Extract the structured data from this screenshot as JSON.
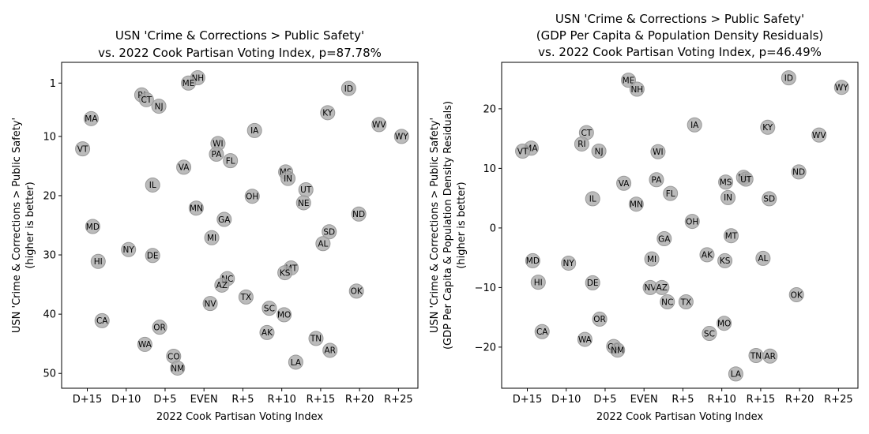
{
  "chart_data": [
    {
      "type": "scatter",
      "title": [
        "USN 'Crime & Corrections > Public Safety'",
        "vs. 2022 Cook Partisan Voting Index, p=87.78%"
      ],
      "xlabel": "2022 Cook Partisan Voting Index",
      "ylabel": [
        "USN 'Crime & Corrections > Public Safety'",
        "(higher is better)"
      ],
      "xlim": [
        -18.3,
        27.5
      ],
      "ylim": [
        52.5,
        -2.5
      ],
      "y_inverted": true,
      "xticks": [
        {
          "v": -15,
          "label": "D+15"
        },
        {
          "v": -10,
          "label": "D+10"
        },
        {
          "v": -5,
          "label": "D+5"
        },
        {
          "v": 0,
          "label": "EVEN"
        },
        {
          "v": 5,
          "label": "R+5"
        },
        {
          "v": 10,
          "label": "R+10"
        },
        {
          "v": 15,
          "label": "R+15"
        },
        {
          "v": 20,
          "label": "R+20"
        },
        {
          "v": 25,
          "label": "R+25"
        }
      ],
      "yticks": [
        {
          "v": 1,
          "label": "1"
        },
        {
          "v": 10,
          "label": "10"
        },
        {
          "v": 20,
          "label": "20"
        },
        {
          "v": 30,
          "label": "30"
        },
        {
          "v": 40,
          "label": "40"
        },
        {
          "v": 50,
          "label": "50"
        }
      ],
      "points": [
        {
          "label": "NH",
          "x": -0.8,
          "y": 0.1
        },
        {
          "label": "ME",
          "x": -2.0,
          "y": 1.0
        },
        {
          "label": "ID",
          "x": 18.6,
          "y": 1.9
        },
        {
          "label": "RI",
          "x": -8.0,
          "y": 3.0
        },
        {
          "label": "CT",
          "x": -7.4,
          "y": 3.8
        },
        {
          "label": "NJ",
          "x": -5.8,
          "y": 4.9
        },
        {
          "label": "KY",
          "x": 15.9,
          "y": 6.0
        },
        {
          "label": "MA",
          "x": -14.5,
          "y": 7.0
        },
        {
          "label": "WV",
          "x": 22.5,
          "y": 8.0
        },
        {
          "label": "IA",
          "x": 6.5,
          "y": 9.0
        },
        {
          "label": "WY",
          "x": 25.4,
          "y": 10.0
        },
        {
          "label": "WI",
          "x": 1.8,
          "y": 11.2
        },
        {
          "label": "VT",
          "x": -15.6,
          "y": 12.1
        },
        {
          "label": "PA",
          "x": 1.6,
          "y": 13.0
        },
        {
          "label": "FL",
          "x": 3.4,
          "y": 14.1
        },
        {
          "label": "VA",
          "x": -2.6,
          "y": 15.2
        },
        {
          "label": "MS",
          "x": 10.5,
          "y": 16.0
        },
        {
          "label": "IN",
          "x": 10.8,
          "y": 17.1
        },
        {
          "label": "IL",
          "x": -6.6,
          "y": 18.2
        },
        {
          "label": "UT",
          "x": 13.1,
          "y": 19.0
        },
        {
          "label": "OH",
          "x": 6.2,
          "y": 20.1
        },
        {
          "label": "NE",
          "x": 12.8,
          "y": 21.2
        },
        {
          "label": "MN",
          "x": -1.0,
          "y": 22.1
        },
        {
          "label": "ND",
          "x": 19.9,
          "y": 23.1
        },
        {
          "label": "GA",
          "x": 2.6,
          "y": 24.0
        },
        {
          "label": "MD",
          "x": -14.3,
          "y": 25.2
        },
        {
          "label": "SD",
          "x": 16.1,
          "y": 26.1
        },
        {
          "label": "MI",
          "x": 1.0,
          "y": 27.1
        },
        {
          "label": "AL",
          "x": 15.3,
          "y": 28.1
        },
        {
          "label": "NY",
          "x": -9.7,
          "y": 29.1
        },
        {
          "label": "DE",
          "x": -6.6,
          "y": 30.1
        },
        {
          "label": "HI",
          "x": -13.6,
          "y": 31.1
        },
        {
          "label": "MT",
          "x": 11.2,
          "y": 32.2
        },
        {
          "label": "KS",
          "x": 10.4,
          "y": 33.0
        },
        {
          "label": "NC",
          "x": 3.0,
          "y": 34.0
        },
        {
          "label": "AZ",
          "x": 2.3,
          "y": 35.1
        },
        {
          "label": "OK",
          "x": 19.6,
          "y": 36.1
        },
        {
          "label": "TX",
          "x": 5.4,
          "y": 37.1
        },
        {
          "label": "NV",
          "x": 0.8,
          "y": 38.2
        },
        {
          "label": "SC",
          "x": 8.4,
          "y": 39.0
        },
        {
          "label": "MO",
          "x": 10.3,
          "y": 40.1
        },
        {
          "label": "CA",
          "x": -13.1,
          "y": 41.1
        },
        {
          "label": "OR",
          "x": -5.7,
          "y": 42.2
        },
        {
          "label": "AK",
          "x": 8.1,
          "y": 43.1
        },
        {
          "label": "TN",
          "x": 14.4,
          "y": 44.1
        },
        {
          "label": "WA",
          "x": -7.6,
          "y": 45.1
        },
        {
          "label": "AR",
          "x": 16.2,
          "y": 46.1
        },
        {
          "label": "CO",
          "x": -3.9,
          "y": 47.1
        },
        {
          "label": "LA",
          "x": 11.8,
          "y": 48.1
        },
        {
          "label": "NM",
          "x": -3.4,
          "y": 49.1
        }
      ]
    },
    {
      "type": "scatter",
      "title": [
        "USN 'Crime & Corrections > Public Safety'",
        "(GDP Per Capita & Population Density Residuals)",
        "vs. 2022 Cook Partisan Voting Index, p=46.49%"
      ],
      "xlabel": "2022 Cook Partisan Voting Index",
      "ylabel": [
        "USN 'Crime & Corrections > Public Safety'",
        "(GDP Per Capita & Population Density Residuals)",
        "(higher is better)"
      ],
      "xlim": [
        -18.3,
        27.5
      ],
      "ylim": [
        -26.9,
        27.8
      ],
      "xticks": [
        {
          "v": -15,
          "label": "D+15"
        },
        {
          "v": -10,
          "label": "D+10"
        },
        {
          "v": -5,
          "label": "D+5"
        },
        {
          "v": 0,
          "label": "EVEN"
        },
        {
          "v": 5,
          "label": "R+5"
        },
        {
          "v": 10,
          "label": "R+10"
        },
        {
          "v": 15,
          "label": "R+15"
        },
        {
          "v": 20,
          "label": "R+20"
        },
        {
          "v": 25,
          "label": "R+25"
        }
      ],
      "yticks": [
        {
          "v": 20,
          "label": "20"
        },
        {
          "v": 10,
          "label": "10"
        },
        {
          "v": 0,
          "label": "0"
        },
        {
          "v": -10,
          "label": "−10"
        },
        {
          "v": -20,
          "label": "−20"
        }
      ],
      "points": [
        {
          "label": "ID",
          "x": 18.6,
          "y": 25.2
        },
        {
          "label": "ME",
          "x": -2.0,
          "y": 24.8
        },
        {
          "label": "WY",
          "x": 25.4,
          "y": 23.6
        },
        {
          "label": "NH",
          "x": -0.9,
          "y": 23.3
        },
        {
          "label": "IA",
          "x": 6.5,
          "y": 17.3
        },
        {
          "label": "KY",
          "x": 15.9,
          "y": 16.9
        },
        {
          "label": "CT",
          "x": -7.4,
          "y": 16.0
        },
        {
          "label": "WV",
          "x": 22.5,
          "y": 15.6
        },
        {
          "label": "RI",
          "x": -8.0,
          "y": 14.1
        },
        {
          "label": "MA",
          "x": -14.5,
          "y": 13.4
        },
        {
          "label": "NJ",
          "x": -5.8,
          "y": 12.9
        },
        {
          "label": "WI",
          "x": 1.8,
          "y": 12.8
        },
        {
          "label": "VT",
          "x": -15.6,
          "y": 12.9
        },
        {
          "label": "ND",
          "x": 19.9,
          "y": 9.4
        },
        {
          "label": "NE",
          "x": 12.8,
          "y": 8.5
        },
        {
          "label": "UT",
          "x": 13.1,
          "y": 8.2
        },
        {
          "label": "PA",
          "x": 1.6,
          "y": 8.1
        },
        {
          "label": "MS",
          "x": 10.5,
          "y": 7.7
        },
        {
          "label": "VA",
          "x": -2.6,
          "y": 7.5
        },
        {
          "label": "FL",
          "x": 3.4,
          "y": 5.8
        },
        {
          "label": "IN",
          "x": 10.8,
          "y": 5.1
        },
        {
          "label": "IL",
          "x": -6.6,
          "y": 4.9
        },
        {
          "label": "SD",
          "x": 16.1,
          "y": 4.9
        },
        {
          "label": "MN",
          "x": -1.0,
          "y": 4.0
        },
        {
          "label": "OH",
          "x": 6.2,
          "y": 1.1
        },
        {
          "label": "MT",
          "x": 11.2,
          "y": -1.3
        },
        {
          "label": "GA",
          "x": 2.6,
          "y": -1.8
        },
        {
          "label": "AK",
          "x": 8.1,
          "y": -4.5
        },
        {
          "label": "AL",
          "x": 15.3,
          "y": -5.1
        },
        {
          "label": "MI",
          "x": 1.0,
          "y": -5.2
        },
        {
          "label": "KS",
          "x": 10.4,
          "y": -5.5
        },
        {
          "label": "MD",
          "x": -14.3,
          "y": -5.5
        },
        {
          "label": "NY",
          "x": -9.7,
          "y": -5.9
        },
        {
          "label": "HI",
          "x": -13.6,
          "y": -9.1
        },
        {
          "label": "DE",
          "x": -6.6,
          "y": -9.2
        },
        {
          "label": "NV",
          "x": 0.8,
          "y": -10.0
        },
        {
          "label": "AZ",
          "x": 2.3,
          "y": -10.0
        },
        {
          "label": "OK",
          "x": 19.6,
          "y": -11.2
        },
        {
          "label": "NC",
          "x": 3.0,
          "y": -12.4
        },
        {
          "label": "TX",
          "x": 5.4,
          "y": -12.4
        },
        {
          "label": "OR",
          "x": -5.7,
          "y": -15.3
        },
        {
          "label": "MO",
          "x": 10.3,
          "y": -16.0
        },
        {
          "label": "CA",
          "x": -13.1,
          "y": -17.4
        },
        {
          "label": "SC",
          "x": 8.4,
          "y": -17.7
        },
        {
          "label": "WA",
          "x": -7.6,
          "y": -18.7
        },
        {
          "label": "CO",
          "x": -3.9,
          "y": -19.9
        },
        {
          "label": "NM",
          "x": -3.4,
          "y": -20.5
        },
        {
          "label": "TN",
          "x": 14.4,
          "y": -21.4
        },
        {
          "label": "AR",
          "x": 16.2,
          "y": -21.5
        },
        {
          "label": "LA",
          "x": 11.8,
          "y": -24.5
        }
      ]
    }
  ]
}
